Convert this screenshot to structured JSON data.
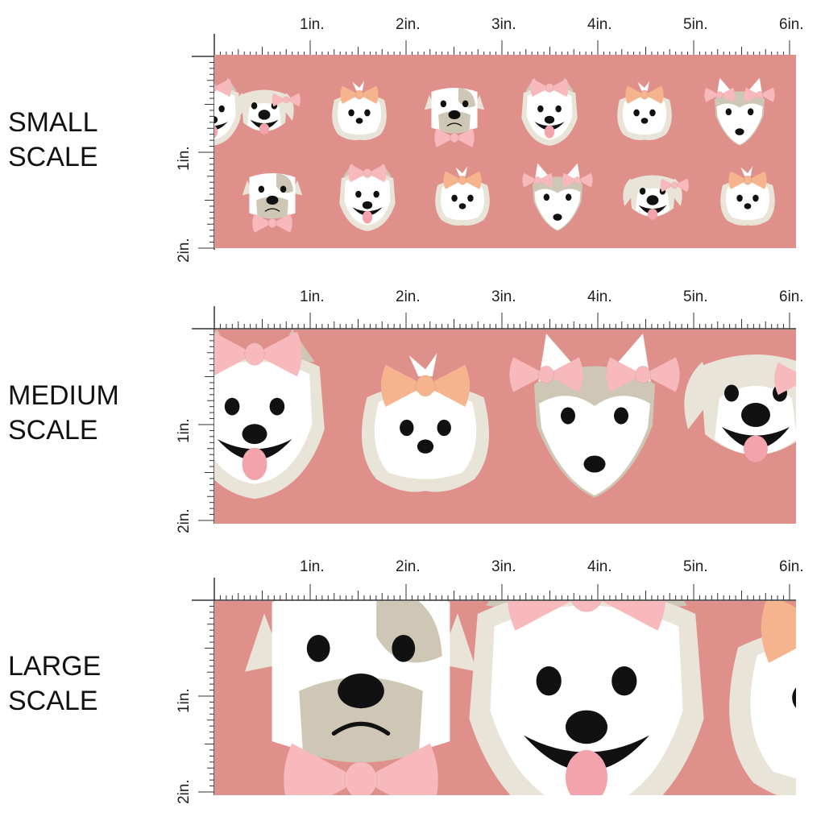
{
  "colors": {
    "fabric_background": "#e0908b",
    "dog_white": "#ffffff",
    "dog_cream": "#e9e4d8",
    "dog_tan": "#cfc7b6",
    "bow_pink": "#f7b9bb",
    "bow_peach": "#f5b48d",
    "tongue": "#f3a3ab",
    "ink": "#111111"
  },
  "ruler": {
    "inch_labels": [
      "1in.",
      "2in.",
      "3in.",
      "4in.",
      "5in.",
      "6in."
    ],
    "vertical_labels": [
      "1in.",
      "2in."
    ]
  },
  "panels": [
    {
      "id": "small",
      "label_line1": "SMALL",
      "label_line2": "SCALE"
    },
    {
      "id": "medium",
      "label_line1": "MEDIUM",
      "label_line2": "SCALE"
    },
    {
      "id": "large",
      "label_line1": "LARGE",
      "label_line2": "SCALE"
    }
  ],
  "icons": {
    "dog": "dog-face-icon",
    "bow": "bow-icon"
  }
}
